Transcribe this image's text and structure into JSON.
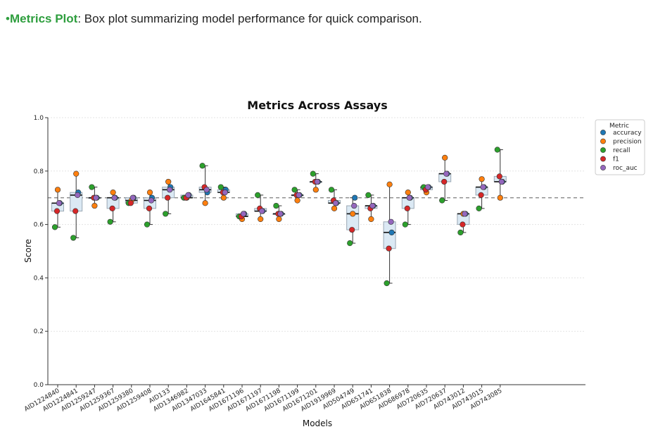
{
  "header": {
    "bullet": "•",
    "highlight": "Metrics Plot",
    "text": ": Box plot summarizing model performance for quick comparison."
  },
  "chart_data": {
    "type": "box",
    "title": "Metrics Across Assays",
    "xlabel": "Models",
    "ylabel": "Score",
    "ylim": [
      0.0,
      1.0
    ],
    "yticks": [
      "0.0",
      "0.2",
      "0.4",
      "0.6",
      "0.8",
      "1.0"
    ],
    "reference_line": 0.7,
    "grid": "y",
    "legend": {
      "title": "Metric",
      "placement": "top-right",
      "entries": [
        "accuracy",
        "precision",
        "recall",
        "f1",
        "roc_auc"
      ]
    },
    "colors": {
      "accuracy": "#1f77b4",
      "precision": "#ff7f0e",
      "recall": "#2ca02c",
      "f1": "#d62728",
      "roc_auc": "#9467bd",
      "box_fill": "#dbe9f4",
      "box_edge": "#9aa7b3"
    },
    "categories": [
      "AID1224840",
      "AID1224841",
      "AID1259247",
      "AID1259367",
      "AID1259380",
      "AID1259408",
      "AID133",
      "AID1346982",
      "AID1347033",
      "AID1645841",
      "AID1671196",
      "AID1671197",
      "AID1671198",
      "AID1671199",
      "AID1671201",
      "AID1919969",
      "AID504749",
      "AID651741",
      "AID651838",
      "AID686978",
      "AID720635",
      "AID720637",
      "AID743012",
      "AID743015",
      "AID743085"
    ],
    "series": [
      {
        "name": "accuracy",
        "values": [
          0.68,
          0.72,
          0.7,
          0.7,
          0.7,
          0.7,
          0.74,
          0.71,
          0.72,
          0.73,
          0.64,
          0.65,
          0.64,
          0.71,
          0.76,
          0.68,
          0.7,
          0.67,
          0.57,
          0.7,
          0.74,
          0.79,
          0.64,
          0.74,
          0.76
        ]
      },
      {
        "name": "precision",
        "values": [
          0.73,
          0.79,
          0.67,
          0.72,
          0.69,
          0.72,
          0.76,
          0.7,
          0.68,
          0.7,
          0.62,
          0.62,
          0.62,
          0.69,
          0.73,
          0.66,
          0.64,
          0.62,
          0.75,
          0.72,
          0.72,
          0.85,
          0.64,
          0.77,
          0.7
        ]
      },
      {
        "name": "recall",
        "values": [
          0.59,
          0.55,
          0.74,
          0.61,
          0.68,
          0.6,
          0.64,
          0.7,
          0.82,
          0.74,
          0.63,
          0.71,
          0.67,
          0.73,
          0.79,
          0.73,
          0.53,
          0.71,
          0.38,
          0.6,
          0.74,
          0.69,
          0.57,
          0.66,
          0.88
        ]
      },
      {
        "name": "f1",
        "values": [
          0.65,
          0.65,
          0.7,
          0.66,
          0.68,
          0.66,
          0.7,
          0.7,
          0.74,
          0.72,
          0.63,
          0.66,
          0.64,
          0.71,
          0.76,
          0.69,
          0.58,
          0.66,
          0.51,
          0.66,
          0.73,
          0.76,
          0.6,
          0.71,
          0.78
        ]
      },
      {
        "name": "roc_auc",
        "values": [
          0.68,
          0.71,
          0.7,
          0.7,
          0.7,
          0.69,
          0.73,
          0.71,
          0.73,
          0.72,
          0.64,
          0.65,
          0.64,
          0.71,
          0.76,
          0.68,
          0.67,
          0.67,
          0.61,
          0.7,
          0.74,
          0.79,
          0.64,
          0.74,
          0.76
        ]
      }
    ]
  }
}
